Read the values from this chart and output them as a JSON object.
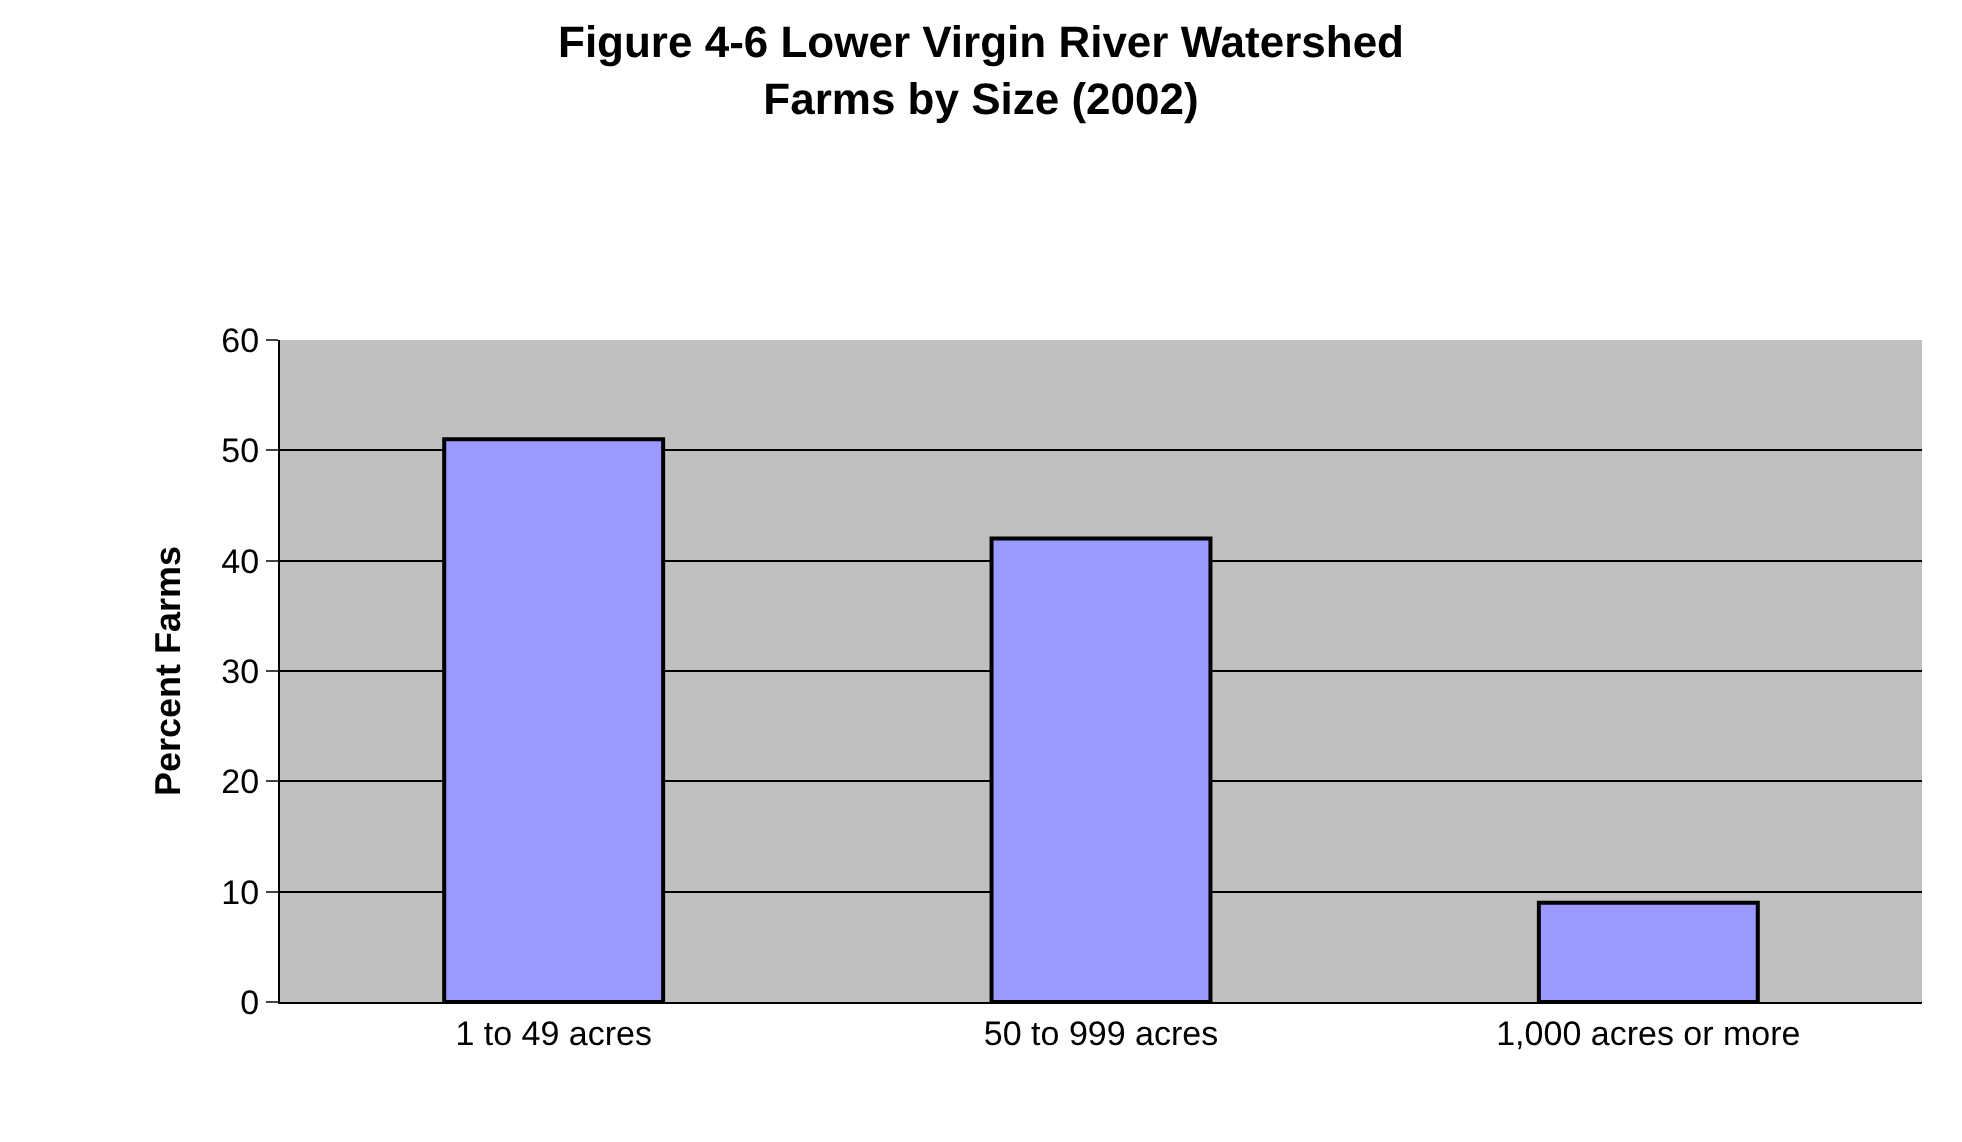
{
  "chart_data": {
    "type": "bar",
    "title": "Figure 4-6 Lower Virgin River Watershed\nFarms by Size (2002)",
    "ylabel": "Percent Farms",
    "categories": [
      "1 to 49 acres",
      "50 to 999 acres",
      "1,000 acres or more"
    ],
    "values": [
      51,
      42,
      9
    ],
    "color": "#9999ff",
    "ylim": [
      0,
      60
    ],
    "yticks": [
      0,
      10,
      20,
      30,
      40,
      50,
      60
    ],
    "grid": "y",
    "legend": false
  }
}
